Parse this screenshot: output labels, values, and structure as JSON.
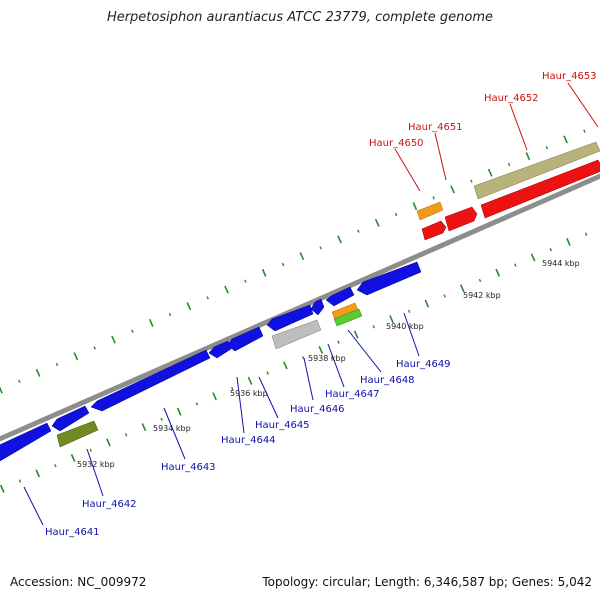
{
  "title": "Herpetosiphon aurantiacus ATCC 23779, complete genome",
  "footer": {
    "accession": "Accession: NC_009972",
    "topology": "Topology: circular; Length: 6,346,587 bp; Genes: 5,042"
  },
  "colors": {
    "backbone": "#8a8a8a",
    "forward_ticks": "#2a8a2a",
    "reverse_ticks": "#2a8a2a",
    "blue_gene": "#1010e0",
    "red_gene": "#ee1111",
    "orange_gene": "#f39a1a",
    "green_gene": "#55cc33",
    "olive_gene": "#6f8a1f",
    "khaki_gene": "#b9b27a",
    "gray_gene": "#bdbdbd",
    "label_forward": "#cc1111",
    "label_reverse": "#1010aa"
  },
  "scale_labels": [
    "5932 kbp",
    "5934 kbp",
    "5936 kbp",
    "5938 kbp",
    "5940 kbp",
    "5942 kbp",
    "5944 kbp"
  ],
  "genes_forward": [
    {
      "name": "Haur_4650",
      "color": "orange_gene"
    },
    {
      "name": "Haur_4651",
      "color": "red_gene"
    },
    {
      "name": "Haur_4652",
      "color": "khaki_gene"
    },
    {
      "name": "Haur_4653",
      "color": "red_gene"
    }
  ],
  "genes_reverse": [
    {
      "name": "Haur_4641",
      "color": "blue_gene"
    },
    {
      "name": "Haur_4642",
      "color": "olive_gene"
    },
    {
      "name": "Haur_4643",
      "color": "blue_gene"
    },
    {
      "name": "Haur_4644",
      "color": "blue_gene"
    },
    {
      "name": "Haur_4645",
      "color": "blue_gene"
    },
    {
      "name": "Haur_4646",
      "color": "gray_gene"
    },
    {
      "name": "Haur_4647",
      "color": "blue_gene"
    },
    {
      "name": "Haur_4648",
      "color": "green_gene"
    },
    {
      "name": "Haur_4649",
      "color": "orange_gene"
    }
  ]
}
